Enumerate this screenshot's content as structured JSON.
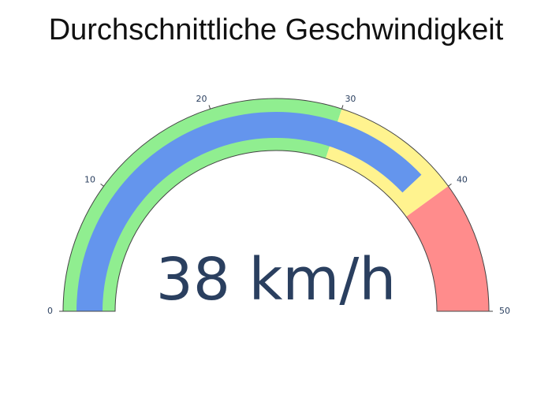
{
  "chart_data": {
    "type": "gauge",
    "title": "Durchschnittliche Geschwindigkeit",
    "value": 38,
    "unit_suffix": " km/h",
    "range": [
      0,
      50
    ],
    "ticks": [
      0,
      10,
      20,
      30,
      40,
      50
    ],
    "tick_labels": [
      "0",
      "10",
      "20",
      "30",
      "40",
      "50"
    ],
    "steps": [
      {
        "range": [
          0,
          30
        ],
        "color": "#90ee90"
      },
      {
        "range": [
          30,
          40
        ],
        "color": "#fff38f"
      },
      {
        "range": [
          40,
          50
        ],
        "color": "#ff8c8c"
      }
    ],
    "bar_color": "#6495ed",
    "value_color": "#2a3f5f"
  }
}
